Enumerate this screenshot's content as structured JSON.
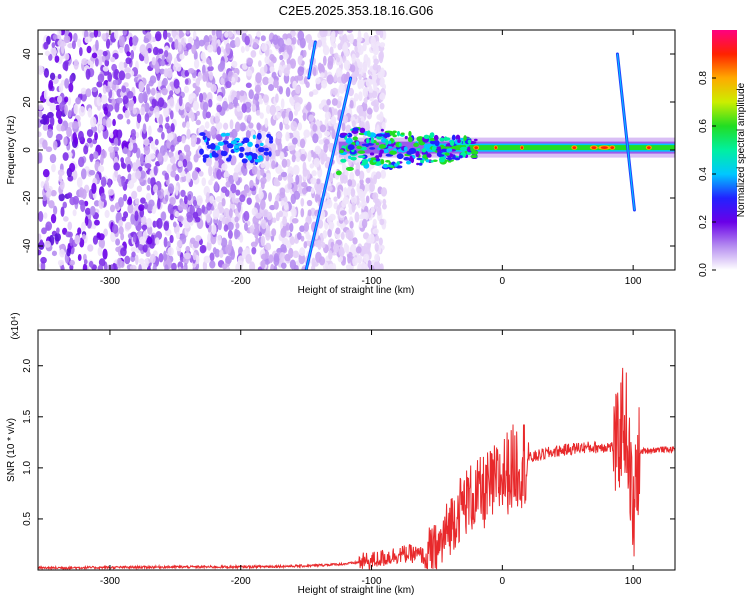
{
  "title": "C2E5.2025.353.18.16.G06",
  "chart_data": [
    {
      "type": "heatmap",
      "xlabel": "Height of straight line (km)",
      "ylabel": "Frequency (Hz)",
      "xlim": [
        -355,
        132
      ],
      "ylim": [
        -50,
        50
      ],
      "x_ticks": [
        -300,
        -200,
        -100,
        0,
        100
      ],
      "x_tick_labels": [
        "-300",
        "-200",
        "-100",
        "0",
        "100"
      ],
      "y_ticks": [
        -40,
        -20,
        0,
        20,
        40
      ],
      "y_tick_labels": [
        "-40",
        "-20",
        "0",
        "20",
        "40"
      ],
      "colorbar": {
        "label": "Normalized spectral amplitude",
        "range": [
          0,
          1
        ],
        "ticks": [
          0.0,
          0.2,
          0.4,
          0.6,
          0.8
        ],
        "tick_labels": [
          "0.0",
          "0.2",
          "0.4",
          "0.6",
          "0.8"
        ],
        "colors": [
          "#ffffff",
          "#b58cf0",
          "#6a00e8",
          "#2222ff",
          "#00c8ff",
          "#00f0a0",
          "#22dd22",
          "#ccee00",
          "#ffaa00",
          "#ff2200",
          "#ff0080"
        ]
      },
      "features": {
        "noise_region_x": [
          -355,
          -130
        ],
        "carrier_band_x": [
          -125,
          132
        ],
        "carrier_frequency": 1,
        "streaks": [
          {
            "x": [
              -150,
              -116
            ],
            "y": [
              -50,
              30
            ]
          },
          {
            "x": [
              -148,
              -143
            ],
            "y": [
              30,
              45
            ]
          },
          {
            "x": [
              88,
              101
            ],
            "y": [
              40,
              -25
            ]
          }
        ]
      }
    },
    {
      "type": "line",
      "xlabel": "Height of straight line (km)",
      "ylabel": "SNR (10 * v/v)",
      "y_multiplier": "(x10⁴)",
      "xlim": [
        -355,
        132
      ],
      "ylim": [
        0,
        23500
      ],
      "x_ticks": [
        -300,
        -200,
        -100,
        0,
        100
      ],
      "x_tick_labels": [
        "-300",
        "-200",
        "-100",
        "0",
        "100"
      ],
      "y_ticks": [
        5000,
        10000,
        15000,
        20000
      ],
      "y_tick_labels": [
        "0.5",
        "1.0",
        "1.5",
        "2.0"
      ],
      "color": "#e8292b",
      "series": [
        {
          "name": "SNR",
          "x": [
            -355,
            -300,
            -250,
            -200,
            -150,
            -120,
            -100,
            -90,
            -80,
            -70,
            -60,
            -50,
            -45,
            -40,
            -35,
            -30,
            -25,
            -20,
            -15,
            -10,
            -5,
            0,
            10,
            20,
            30,
            40,
            50,
            60,
            70,
            80,
            85,
            88,
            92,
            95,
            98,
            100,
            103,
            106,
            110,
            120,
            132
          ],
          "y": [
            200,
            250,
            300,
            300,
            400,
            600,
            900,
            1200,
            1500,
            1600,
            1400,
            1800,
            3000,
            4500,
            5500,
            6500,
            7000,
            7200,
            7500,
            8000,
            8500,
            9200,
            10200,
            10900,
            11300,
            11600,
            11800,
            12000,
            12000,
            12100,
            12000,
            11800,
            15000,
            14000,
            9000,
            4000,
            10000,
            11600,
            11700,
            11800,
            11800
          ]
        }
      ]
    }
  ]
}
